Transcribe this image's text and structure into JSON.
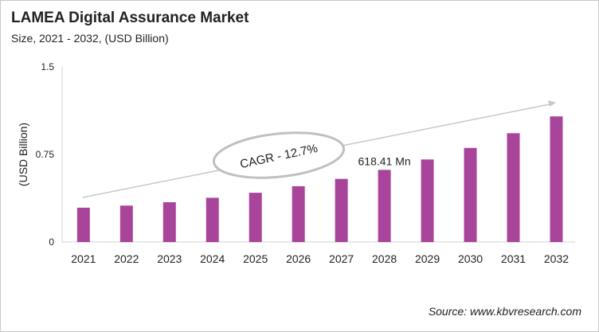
{
  "chart_data": {
    "type": "bar",
    "title": "LAMEA Digital Assurance Market",
    "subtitle": "Size, 2021 - 2032, (USD Billion)",
    "xlabel": "",
    "ylabel": "(USD Billion)",
    "ylim": [
      0,
      1.5
    ],
    "yticks": [
      "0",
      "0.75",
      "1.5"
    ],
    "categories": [
      "2021",
      "2022",
      "2023",
      "2024",
      "2025",
      "2026",
      "2027",
      "2028",
      "2029",
      "2030",
      "2031",
      "2032"
    ],
    "values": [
      0.294,
      0.312,
      0.341,
      0.379,
      0.422,
      0.478,
      0.541,
      0.618,
      0.707,
      0.806,
      0.932,
      1.076
    ],
    "bar_color": "#a8459b",
    "grid": false,
    "annotations": {
      "data_label": "618.41 Mn",
      "data_label_category": "2028",
      "cagr": "CAGR - 12.7%"
    },
    "source": "Source: www.kbvresearch.com"
  }
}
